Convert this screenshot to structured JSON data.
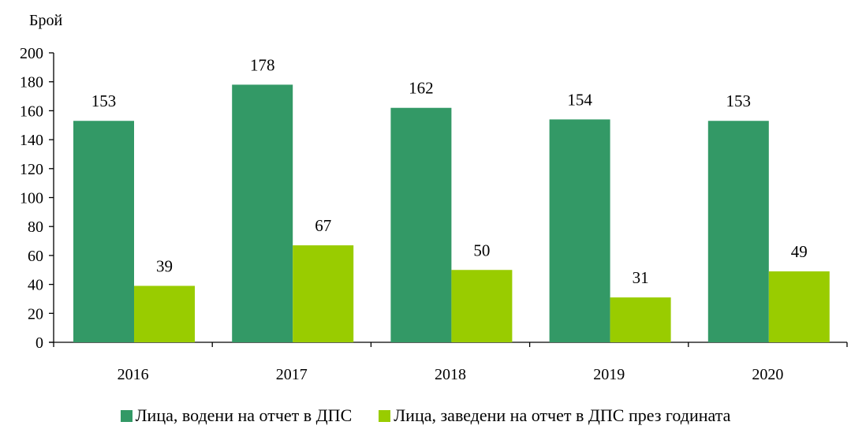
{
  "chart_data": {
    "type": "bar",
    "title": "",
    "ylabel": "Брой",
    "xlabel": "",
    "ylim": [
      0,
      200
    ],
    "yticks": [
      0,
      20,
      40,
      60,
      80,
      100,
      120,
      140,
      160,
      180,
      200
    ],
    "categories": [
      "2016",
      "2017",
      "2018",
      "2019",
      "2020"
    ],
    "series": [
      {
        "name": "Лица, водени на отчет в ДПС",
        "color": "#339966",
        "values": [
          153,
          178,
          162,
          154,
          153
        ]
      },
      {
        "name": "Лица, заведени на отчет в ДПС през годината",
        "color": "#99cc00",
        "values": [
          39,
          67,
          50,
          31,
          49
        ]
      }
    ],
    "legend_position": "bottom",
    "grid": false
  }
}
